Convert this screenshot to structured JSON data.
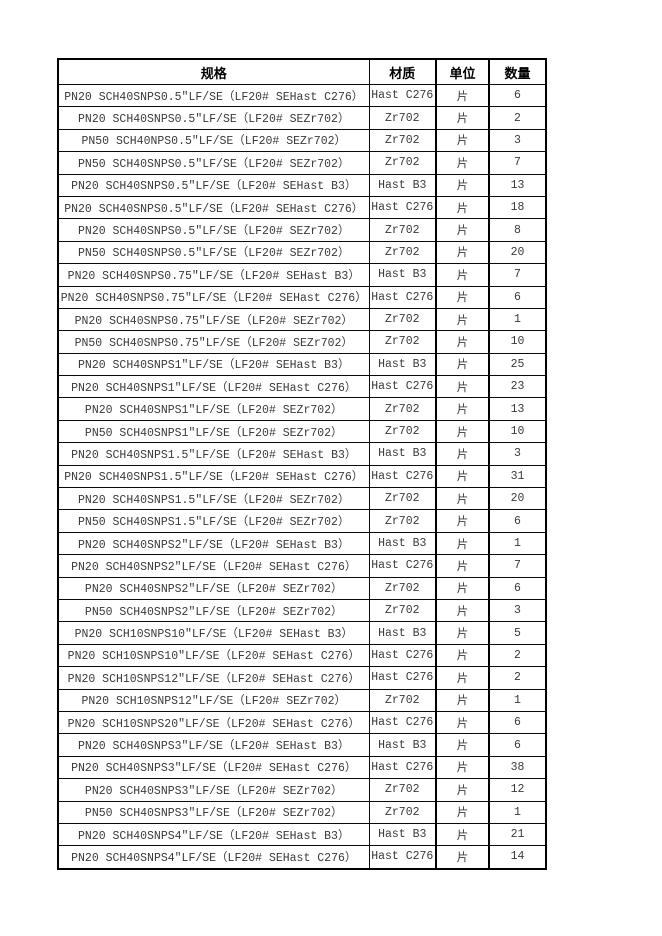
{
  "table": {
    "columns": [
      {
        "key": "spec",
        "label": "规格"
      },
      {
        "key": "material",
        "label": "材质"
      },
      {
        "key": "unit",
        "label": "单位"
      },
      {
        "key": "qty",
        "label": "数量"
      }
    ],
    "rows": [
      {
        "spec": "PN20 SCH40SNPS0.5″LF/SE（LF20# SEHast C276）",
        "material": "Hast C276",
        "unit": "片",
        "qty": 6
      },
      {
        "spec": "PN20 SCH40SNPS0.5″LF/SE（LF20# SEZr702）",
        "material": "Zr702",
        "unit": "片",
        "qty": 2
      },
      {
        "spec": "PN50 SCH40NPS0.5″LF/SE（LF20# SEZr702）",
        "material": "Zr702",
        "unit": "片",
        "qty": 3
      },
      {
        "spec": "PN50 SCH40SNPS0.5″LF/SE（LF20# SEZr702）",
        "material": "Zr702",
        "unit": "片",
        "qty": 7
      },
      {
        "spec": "PN20 SCH40SNPS0.5″LF/SE（LF20# SEHast B3）",
        "material": "Hast B3",
        "unit": "片",
        "qty": 13
      },
      {
        "spec": "PN20 SCH40SNPS0.5″LF/SE（LF20# SEHast C276）",
        "material": "Hast C276",
        "unit": "片",
        "qty": 18
      },
      {
        "spec": "PN20 SCH40SNPS0.5″LF/SE（LF20# SEZr702）",
        "material": "Zr702",
        "unit": "片",
        "qty": 8
      },
      {
        "spec": "PN50 SCH40SNPS0.5″LF/SE（LF20# SEZr702）",
        "material": "Zr702",
        "unit": "片",
        "qty": 20
      },
      {
        "spec": "PN20 SCH40SNPS0.75″LF/SE（LF20# SEHast B3）",
        "material": "Hast B3",
        "unit": "片",
        "qty": 7
      },
      {
        "spec": "PN20 SCH40SNPS0.75″LF/SE（LF20# SEHast C276）",
        "material": "Hast C276",
        "unit": "片",
        "qty": 6
      },
      {
        "spec": "PN20 SCH40SNPS0.75″LF/SE（LF20# SEZr702）",
        "material": "Zr702",
        "unit": "片",
        "qty": 1
      },
      {
        "spec": "PN50 SCH40SNPS0.75″LF/SE（LF20# SEZr702）",
        "material": "Zr702",
        "unit": "片",
        "qty": 10
      },
      {
        "spec": "PN20 SCH40SNPS1″LF/SE（LF20# SEHast B3）",
        "material": "Hast B3",
        "unit": "片",
        "qty": 25
      },
      {
        "spec": "PN20 SCH40SNPS1″LF/SE（LF20# SEHast C276）",
        "material": "Hast C276",
        "unit": "片",
        "qty": 23
      },
      {
        "spec": "PN20 SCH40SNPS1″LF/SE（LF20# SEZr702）",
        "material": "Zr702",
        "unit": "片",
        "qty": 13
      },
      {
        "spec": "PN50 SCH40SNPS1″LF/SE（LF20# SEZr702）",
        "material": "Zr702",
        "unit": "片",
        "qty": 10
      },
      {
        "spec": "PN20 SCH40SNPS1.5″LF/SE（LF20# SEHast B3）",
        "material": "Hast B3",
        "unit": "片",
        "qty": 3
      },
      {
        "spec": "PN20 SCH40SNPS1.5″LF/SE（LF20# SEHast C276）",
        "material": "Hast C276",
        "unit": "片",
        "qty": 31
      },
      {
        "spec": "PN20 SCH40SNPS1.5″LF/SE（LF20# SEZr702）",
        "material": "Zr702",
        "unit": "片",
        "qty": 20
      },
      {
        "spec": "PN50 SCH40SNPS1.5″LF/SE（LF20# SEZr702）",
        "material": "Zr702",
        "unit": "片",
        "qty": 6
      },
      {
        "spec": "PN20 SCH40SNPS2″LF/SE（LF20# SEHast B3）",
        "material": "Hast B3",
        "unit": "片",
        "qty": 1
      },
      {
        "spec": "PN20 SCH40SNPS2″LF/SE（LF20# SEHast C276）",
        "material": "Hast C276",
        "unit": "片",
        "qty": 7
      },
      {
        "spec": "PN20 SCH40SNPS2″LF/SE（LF20# SEZr702）",
        "material": "Zr702",
        "unit": "片",
        "qty": 6
      },
      {
        "spec": "PN50 SCH40SNPS2″LF/SE（LF20# SEZr702）",
        "material": "Zr702",
        "unit": "片",
        "qty": 3
      },
      {
        "spec": "PN20 SCH10SNPS10″LF/SE（LF20# SEHast B3）",
        "material": "Hast B3",
        "unit": "片",
        "qty": 5
      },
      {
        "spec": "PN20 SCH10SNPS10″LF/SE（LF20# SEHast C276）",
        "material": "Hast C276",
        "unit": "片",
        "qty": 2
      },
      {
        "spec": "PN20 SCH10SNPS12″LF/SE（LF20# SEHast C276）",
        "material": "Hast C276",
        "unit": "片",
        "qty": 2
      },
      {
        "spec": "PN20 SCH10SNPS12″LF/SE（LF20# SEZr702）",
        "material": "Zr702",
        "unit": "片",
        "qty": 1
      },
      {
        "spec": "PN20 SCH10SNPS20″LF/SE（LF20# SEHast C276）",
        "material": "Hast C276",
        "unit": "片",
        "qty": 6
      },
      {
        "spec": "PN20 SCH40SNPS3″LF/SE（LF20# SEHast B3）",
        "material": "Hast B3",
        "unit": "片",
        "qty": 6
      },
      {
        "spec": "PN20 SCH40SNPS3″LF/SE（LF20# SEHast C276）",
        "material": "Hast C276",
        "unit": "片",
        "qty": 38
      },
      {
        "spec": "PN20 SCH40SNPS3″LF/SE（LF20# SEZr702）",
        "material": "Zr702",
        "unit": "片",
        "qty": 12
      },
      {
        "spec": "PN50 SCH40SNPS3″LF/SE（LF20# SEZr702）",
        "material": "Zr702",
        "unit": "片",
        "qty": 1
      },
      {
        "spec": "PN20 SCH40SNPS4″LF/SE（LF20# SEHast B3）",
        "material": "Hast B3",
        "unit": "片",
        "qty": 21
      },
      {
        "spec": "PN20 SCH40SNPS4″LF/SE（LF20# SEHast C276）",
        "material": "Hast C276",
        "unit": "片",
        "qty": 14
      }
    ]
  }
}
